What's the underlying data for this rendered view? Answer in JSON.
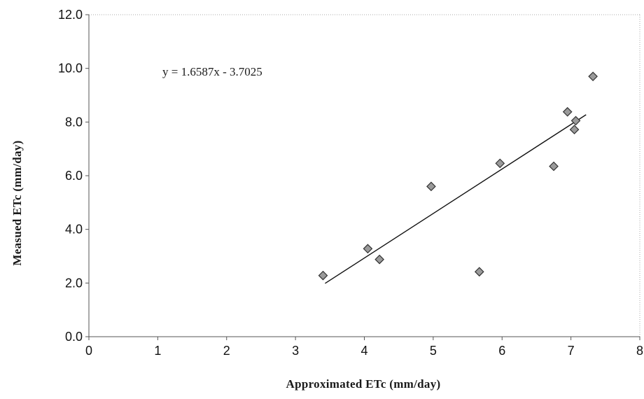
{
  "chart_data": {
    "type": "scatter",
    "title": "",
    "xlabel": "Approximated ETc (mm/day)",
    "ylabel": "Measued ETc (mm/day)",
    "xlim": [
      0,
      8
    ],
    "ylim": [
      0,
      12
    ],
    "x_ticks": [
      "0",
      "1",
      "2",
      "3",
      "4",
      "5",
      "6",
      "7",
      "8"
    ],
    "y_ticks": [
      "0.0",
      "2.0",
      "4.0",
      "6.0",
      "8.0",
      "10.0",
      "12.0"
    ],
    "grid": false,
    "legend": "none",
    "series": [
      {
        "marker": "diamond",
        "points": [
          {
            "x": 3.4,
            "y": 2.28
          },
          {
            "x": 4.05,
            "y": 3.28
          },
          {
            "x": 4.22,
            "y": 2.88
          },
          {
            "x": 4.97,
            "y": 5.6
          },
          {
            "x": 5.67,
            "y": 2.42
          },
          {
            "x": 5.97,
            "y": 6.46
          },
          {
            "x": 6.75,
            "y": 6.35
          },
          {
            "x": 6.95,
            "y": 8.38
          },
          {
            "x": 7.05,
            "y": 7.72
          },
          {
            "x": 7.07,
            "y": 8.05
          },
          {
            "x": 7.32,
            "y": 9.7
          }
        ]
      }
    ],
    "trendline": {
      "slope": 1.6587,
      "intercept": -3.7025,
      "x_range": [
        3.43,
        7.22
      ],
      "label": "y = 1.6587x - 3.7025"
    },
    "colors": {
      "axis": "#555555",
      "frame": "#aaaaaa",
      "marker_fill": "#9a9a9a",
      "marker_stroke": "#333333",
      "line": "#111111"
    }
  }
}
